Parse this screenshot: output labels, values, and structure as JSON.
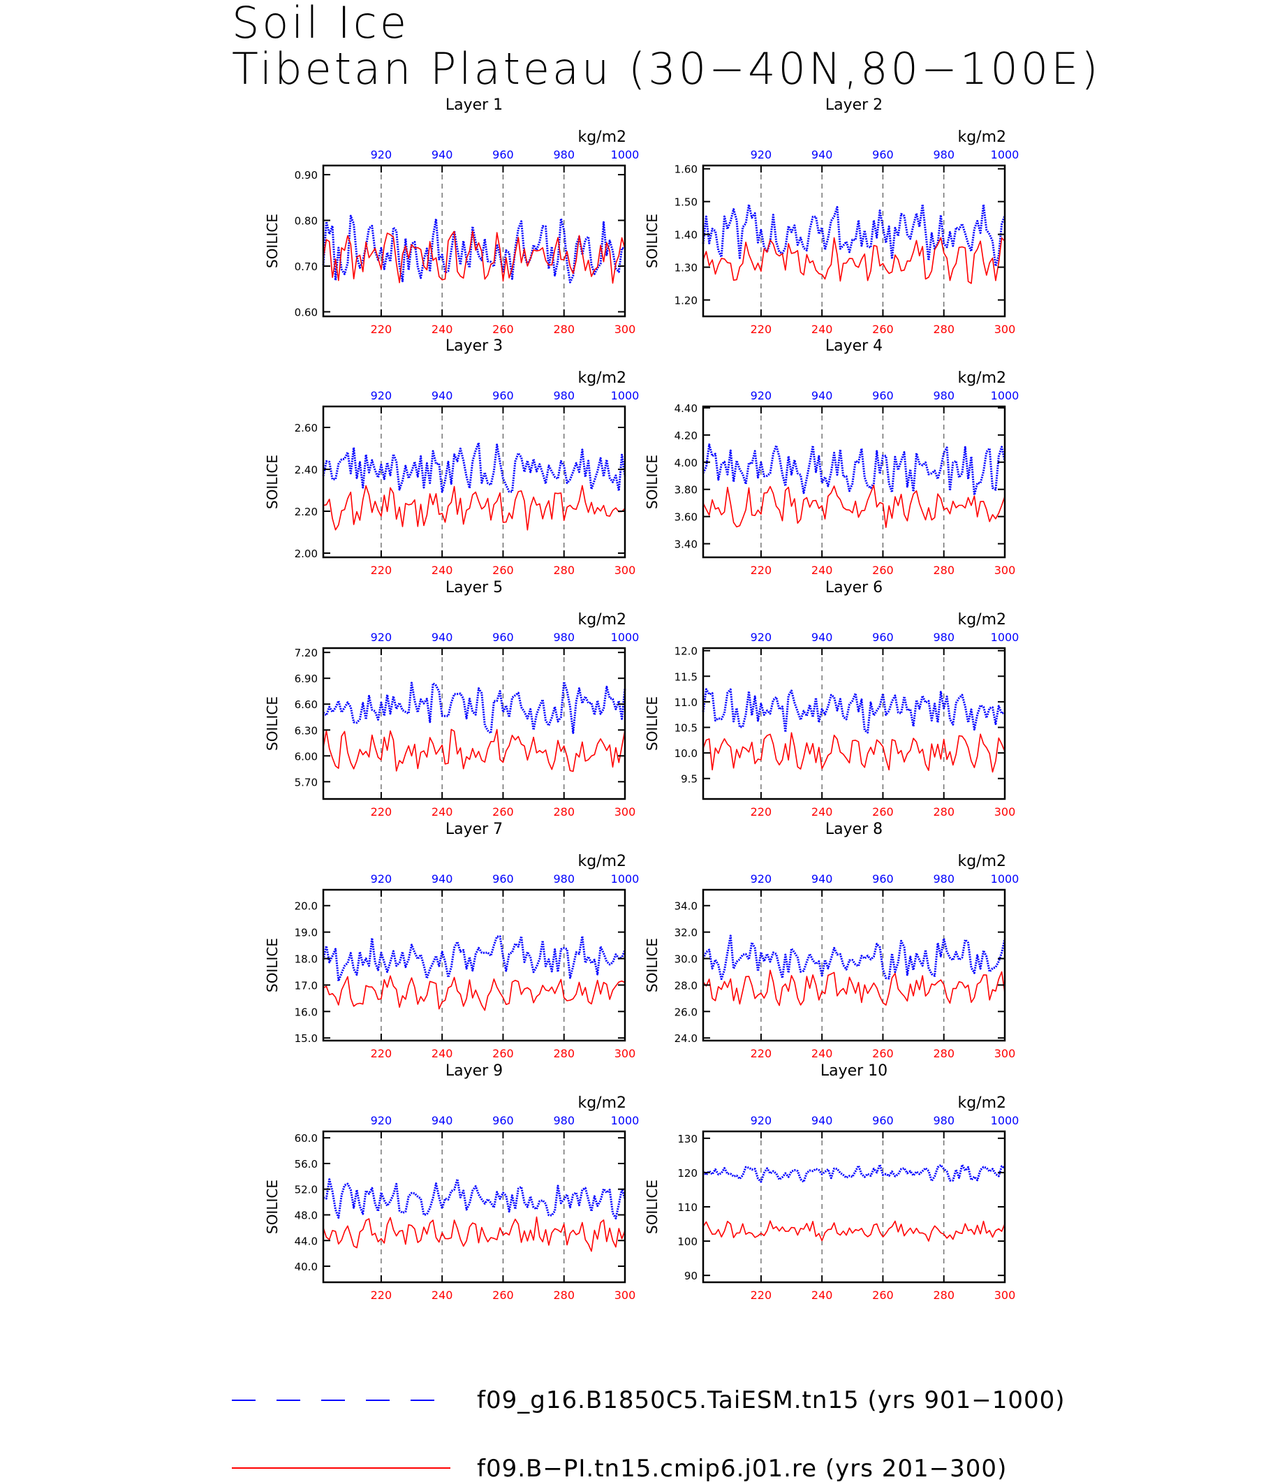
{
  "title": {
    "line1": "Soil Ice",
    "line2": "Tibetan Plateau (30−40N,80−100E)"
  },
  "colors": {
    "series_top": "#0000ff",
    "series_bottom": "#ff0000",
    "axis": "#000000",
    "grid": "#555555"
  },
  "legend": [
    {
      "label": "f09_g16.B1850C5.TaiESM.tn15 (yrs 901−1000)",
      "color": "#0000ff",
      "style": "dashed"
    },
    {
      "label": "f09.B−PI.tn15.cmip6.j01.re (yrs 201−300)",
      "color": "#ff0000",
      "style": "solid"
    }
  ],
  "chart_data": [
    {
      "type": "line",
      "title": "Layer 1",
      "ylabel": "SOILICE",
      "unit": "kg/m2",
      "bottom_axis": {
        "xlim": [
          201,
          300
        ],
        "ticks": [
          "220",
          "240",
          "260",
          "280",
          "300"
        ]
      },
      "top_axis": {
        "xlim": [
          901,
          1000
        ],
        "ticks": [
          "920",
          "940",
          "960",
          "980",
          "1000"
        ]
      },
      "ylim": [
        0.59,
        0.92
      ],
      "yticks": [
        "0.60",
        "0.70",
        "0.80",
        "0.90"
      ],
      "series": [
        {
          "axis": "top",
          "mean": 0.73,
          "amp": 0.15
        },
        {
          "axis": "bottom",
          "mean": 0.72,
          "amp": 0.11
        }
      ]
    },
    {
      "type": "line",
      "title": "Layer 2",
      "ylabel": "SOILICE",
      "unit": "kg/m2",
      "bottom_axis": {
        "xlim": [
          201,
          300
        ],
        "ticks": [
          "220",
          "240",
          "260",
          "280",
          "300"
        ]
      },
      "top_axis": {
        "xlim": [
          901,
          1000
        ],
        "ticks": [
          "920",
          "940",
          "960",
          "980",
          "1000"
        ]
      },
      "ylim": [
        1.15,
        1.61
      ],
      "yticks": [
        "1.20",
        "1.30",
        "1.40",
        "1.50",
        "1.60"
      ],
      "series": [
        {
          "axis": "top",
          "mean": 1.4,
          "amp": 0.18
        },
        {
          "axis": "bottom",
          "mean": 1.32,
          "amp": 0.14
        }
      ]
    },
    {
      "type": "line",
      "title": "Layer 3",
      "ylabel": "SOILICE",
      "unit": "kg/m2",
      "bottom_axis": {
        "xlim": [
          201,
          300
        ],
        "ticks": [
          "220",
          "240",
          "260",
          "280",
          "300"
        ]
      },
      "top_axis": {
        "xlim": [
          901,
          1000
        ],
        "ticks": [
          "920",
          "940",
          "960",
          "980",
          "1000"
        ]
      },
      "ylim": [
        1.98,
        2.7
      ],
      "yticks": [
        "2.00",
        "2.20",
        "2.40",
        "2.60"
      ],
      "series": [
        {
          "axis": "top",
          "mean": 2.4,
          "amp": 0.24
        },
        {
          "axis": "bottom",
          "mean": 2.22,
          "amp": 0.2
        }
      ]
    },
    {
      "type": "line",
      "title": "Layer 4",
      "ylabel": "SOILICE",
      "unit": "kg/m2",
      "bottom_axis": {
        "xlim": [
          201,
          300
        ],
        "ticks": [
          "220",
          "240",
          "260",
          "280",
          "300"
        ]
      },
      "top_axis": {
        "xlim": [
          901,
          1000
        ],
        "ticks": [
          "920",
          "940",
          "960",
          "980",
          "1000"
        ]
      },
      "ylim": [
        3.3,
        4.41
      ],
      "yticks": [
        "3.40",
        "3.60",
        "3.80",
        "4.00",
        "4.20",
        "4.40"
      ],
      "series": [
        {
          "axis": "top",
          "mean": 3.96,
          "amp": 0.38
        },
        {
          "axis": "bottom",
          "mean": 3.68,
          "amp": 0.3
        }
      ]
    },
    {
      "type": "line",
      "title": "Layer 5",
      "ylabel": "SOILICE",
      "unit": "kg/m2",
      "bottom_axis": {
        "xlim": [
          201,
          300
        ],
        "ticks": [
          "220",
          "240",
          "260",
          "280",
          "300"
        ]
      },
      "top_axis": {
        "xlim": [
          901,
          1000
        ],
        "ticks": [
          "920",
          "940",
          "960",
          "980",
          "1000"
        ]
      },
      "ylim": [
        5.5,
        7.25
      ],
      "yticks": [
        "5.70",
        "6.00",
        "6.30",
        "6.60",
        "6.90",
        "7.20"
      ],
      "series": [
        {
          "axis": "top",
          "mean": 6.55,
          "amp": 0.6
        },
        {
          "axis": "bottom",
          "mean": 6.05,
          "amp": 0.5
        }
      ]
    },
    {
      "type": "line",
      "title": "Layer 6",
      "ylabel": "SOILICE",
      "unit": "kg/m2",
      "bottom_axis": {
        "xlim": [
          201,
          300
        ],
        "ticks": [
          "220",
          "240",
          "260",
          "280",
          "300"
        ]
      },
      "top_axis": {
        "xlim": [
          901,
          1000
        ],
        "ticks": [
          "920",
          "940",
          "960",
          "980",
          "1000"
        ]
      },
      "ylim": [
        9.1,
        12.05
      ],
      "yticks": [
        "9.5",
        "10.0",
        "10.5",
        "11.0",
        "11.5",
        "12.0"
      ],
      "series": [
        {
          "axis": "top",
          "mean": 10.85,
          "amp": 0.9
        },
        {
          "axis": "bottom",
          "mean": 10.0,
          "amp": 0.75
        }
      ]
    },
    {
      "type": "line",
      "title": "Layer 7",
      "ylabel": "SOILICE",
      "unit": "kg/m2",
      "bottom_axis": {
        "xlim": [
          201,
          300
        ],
        "ticks": [
          "220",
          "240",
          "260",
          "280",
          "300"
        ]
      },
      "top_axis": {
        "xlim": [
          901,
          1000
        ],
        "ticks": [
          "920",
          "940",
          "960",
          "980",
          "1000"
        ]
      },
      "ylim": [
        14.9,
        20.6
      ],
      "yticks": [
        "15.0",
        "16.0",
        "17.0",
        "18.0",
        "19.0",
        "20.0"
      ],
      "series": [
        {
          "axis": "top",
          "mean": 18.0,
          "amp": 1.6
        },
        {
          "axis": "bottom",
          "mean": 16.7,
          "amp": 1.3
        }
      ]
    },
    {
      "type": "line",
      "title": "Layer 8",
      "ylabel": "SOILICE",
      "unit": "kg/m2",
      "bottom_axis": {
        "xlim": [
          201,
          300
        ],
        "ticks": [
          "220",
          "240",
          "260",
          "280",
          "300"
        ]
      },
      "top_axis": {
        "xlim": [
          901,
          1000
        ],
        "ticks": [
          "920",
          "940",
          "960",
          "980",
          "1000"
        ]
      },
      "ylim": [
        23.8,
        35.2
      ],
      "yticks": [
        "24.0",
        "26.0",
        "28.0",
        "30.0",
        "32.0",
        "34.0"
      ],
      "series": [
        {
          "axis": "top",
          "mean": 30.0,
          "amp": 3.2
        },
        {
          "axis": "bottom",
          "mean": 27.8,
          "amp": 2.6
        }
      ]
    },
    {
      "type": "line",
      "title": "Layer 9",
      "ylabel": "SOILICE",
      "unit": "kg/m2",
      "bottom_axis": {
        "xlim": [
          201,
          300
        ],
        "ticks": [
          "220",
          "240",
          "260",
          "280",
          "300"
        ]
      },
      "top_axis": {
        "xlim": [
          901,
          1000
        ],
        "ticks": [
          "920",
          "940",
          "960",
          "980",
          "1000"
        ]
      },
      "ylim": [
        37.5,
        61.0
      ],
      "yticks": [
        "40.0",
        "44.0",
        "48.0",
        "52.0",
        "56.0",
        "60.0"
      ],
      "series": [
        {
          "axis": "top",
          "mean": 50.5,
          "amp": 6.0
        },
        {
          "axis": "bottom",
          "mean": 45.0,
          "amp": 5.0
        }
      ]
    },
    {
      "type": "line",
      "title": "Layer 10",
      "ylabel": "SOILICE",
      "unit": "kg/m2",
      "bottom_axis": {
        "xlim": [
          201,
          300
        ],
        "ticks": [
          "220",
          "240",
          "260",
          "280",
          "300"
        ]
      },
      "top_axis": {
        "xlim": [
          901,
          1000
        ],
        "ticks": [
          "920",
          "940",
          "960",
          "980",
          "1000"
        ]
      },
      "ylim": [
        88,
        132
      ],
      "yticks": [
        "90",
        "100",
        "110",
        "120",
        "130"
      ],
      "series": [
        {
          "axis": "top",
          "mean": 120.0,
          "amp": 5.0
        },
        {
          "axis": "bottom",
          "mean": 103.0,
          "amp": 5.5
        }
      ]
    }
  ]
}
